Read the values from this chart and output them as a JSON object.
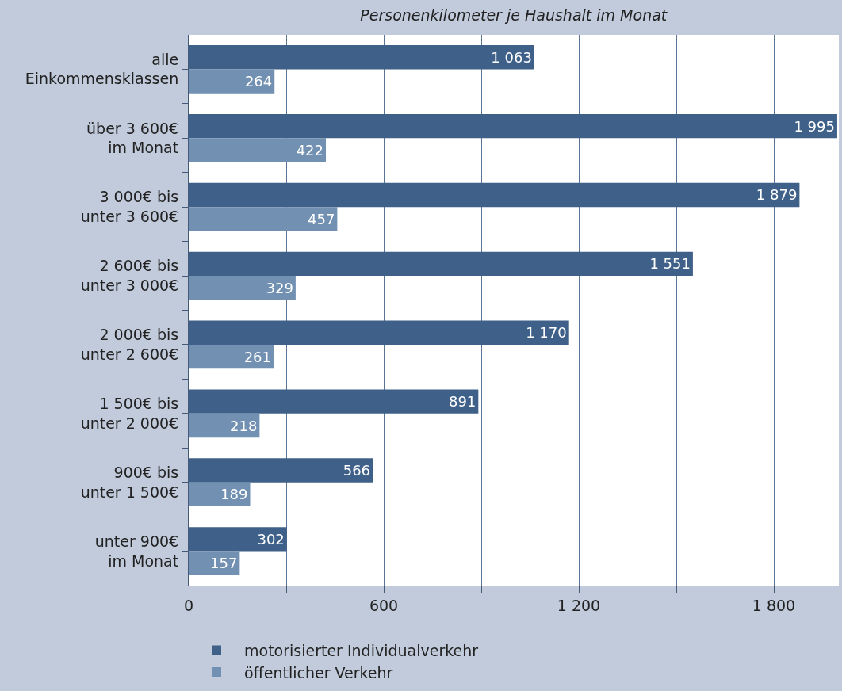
{
  "chart_data": {
    "type": "bar",
    "orientation": "horizontal",
    "title": "Personenkilometer je Haushalt im Monat",
    "categories": [
      "alle\nEinkommensklassen",
      "über 3 600€\nim Monat",
      "3 000€ bis\nunter 3 600€",
      "2 600€ bis\nunter 3 000€",
      "2 000€ bis\nunter 2 600€",
      "1 500€ bis\nunter 2 000€",
      "900€ bis\nunter 1 500€",
      "unter 900€\nim Monat"
    ],
    "series": [
      {
        "name": "motorisierter Individualverkehr",
        "color": "#3f6189",
        "values": [
          1063,
          1995,
          1879,
          1551,
          1170,
          891,
          566,
          302
        ],
        "value_labels": [
          "1 063",
          "1 995",
          "1 879",
          "1 551",
          "1 170",
          "891",
          "566",
          "302"
        ]
      },
      {
        "name": "öffentlicher Verkehr",
        "color": "#7190b2",
        "values": [
          264,
          422,
          457,
          329,
          261,
          218,
          189,
          157
        ],
        "value_labels": [
          "264",
          "422",
          "457",
          "329",
          "261",
          "218",
          "189",
          "157"
        ]
      }
    ],
    "xlim": [
      0,
      2000
    ],
    "xticks": [
      0,
      {
        "value": 300,
        "label": null
      },
      600,
      {
        "value": 900,
        "label": null
      },
      {
        "value": 1200,
        "label": "1 200"
      },
      {
        "value": 1500,
        "label": null
      },
      {
        "value": 1800,
        "label": "1 800"
      }
    ],
    "grid": "x",
    "legend": "bottom"
  }
}
